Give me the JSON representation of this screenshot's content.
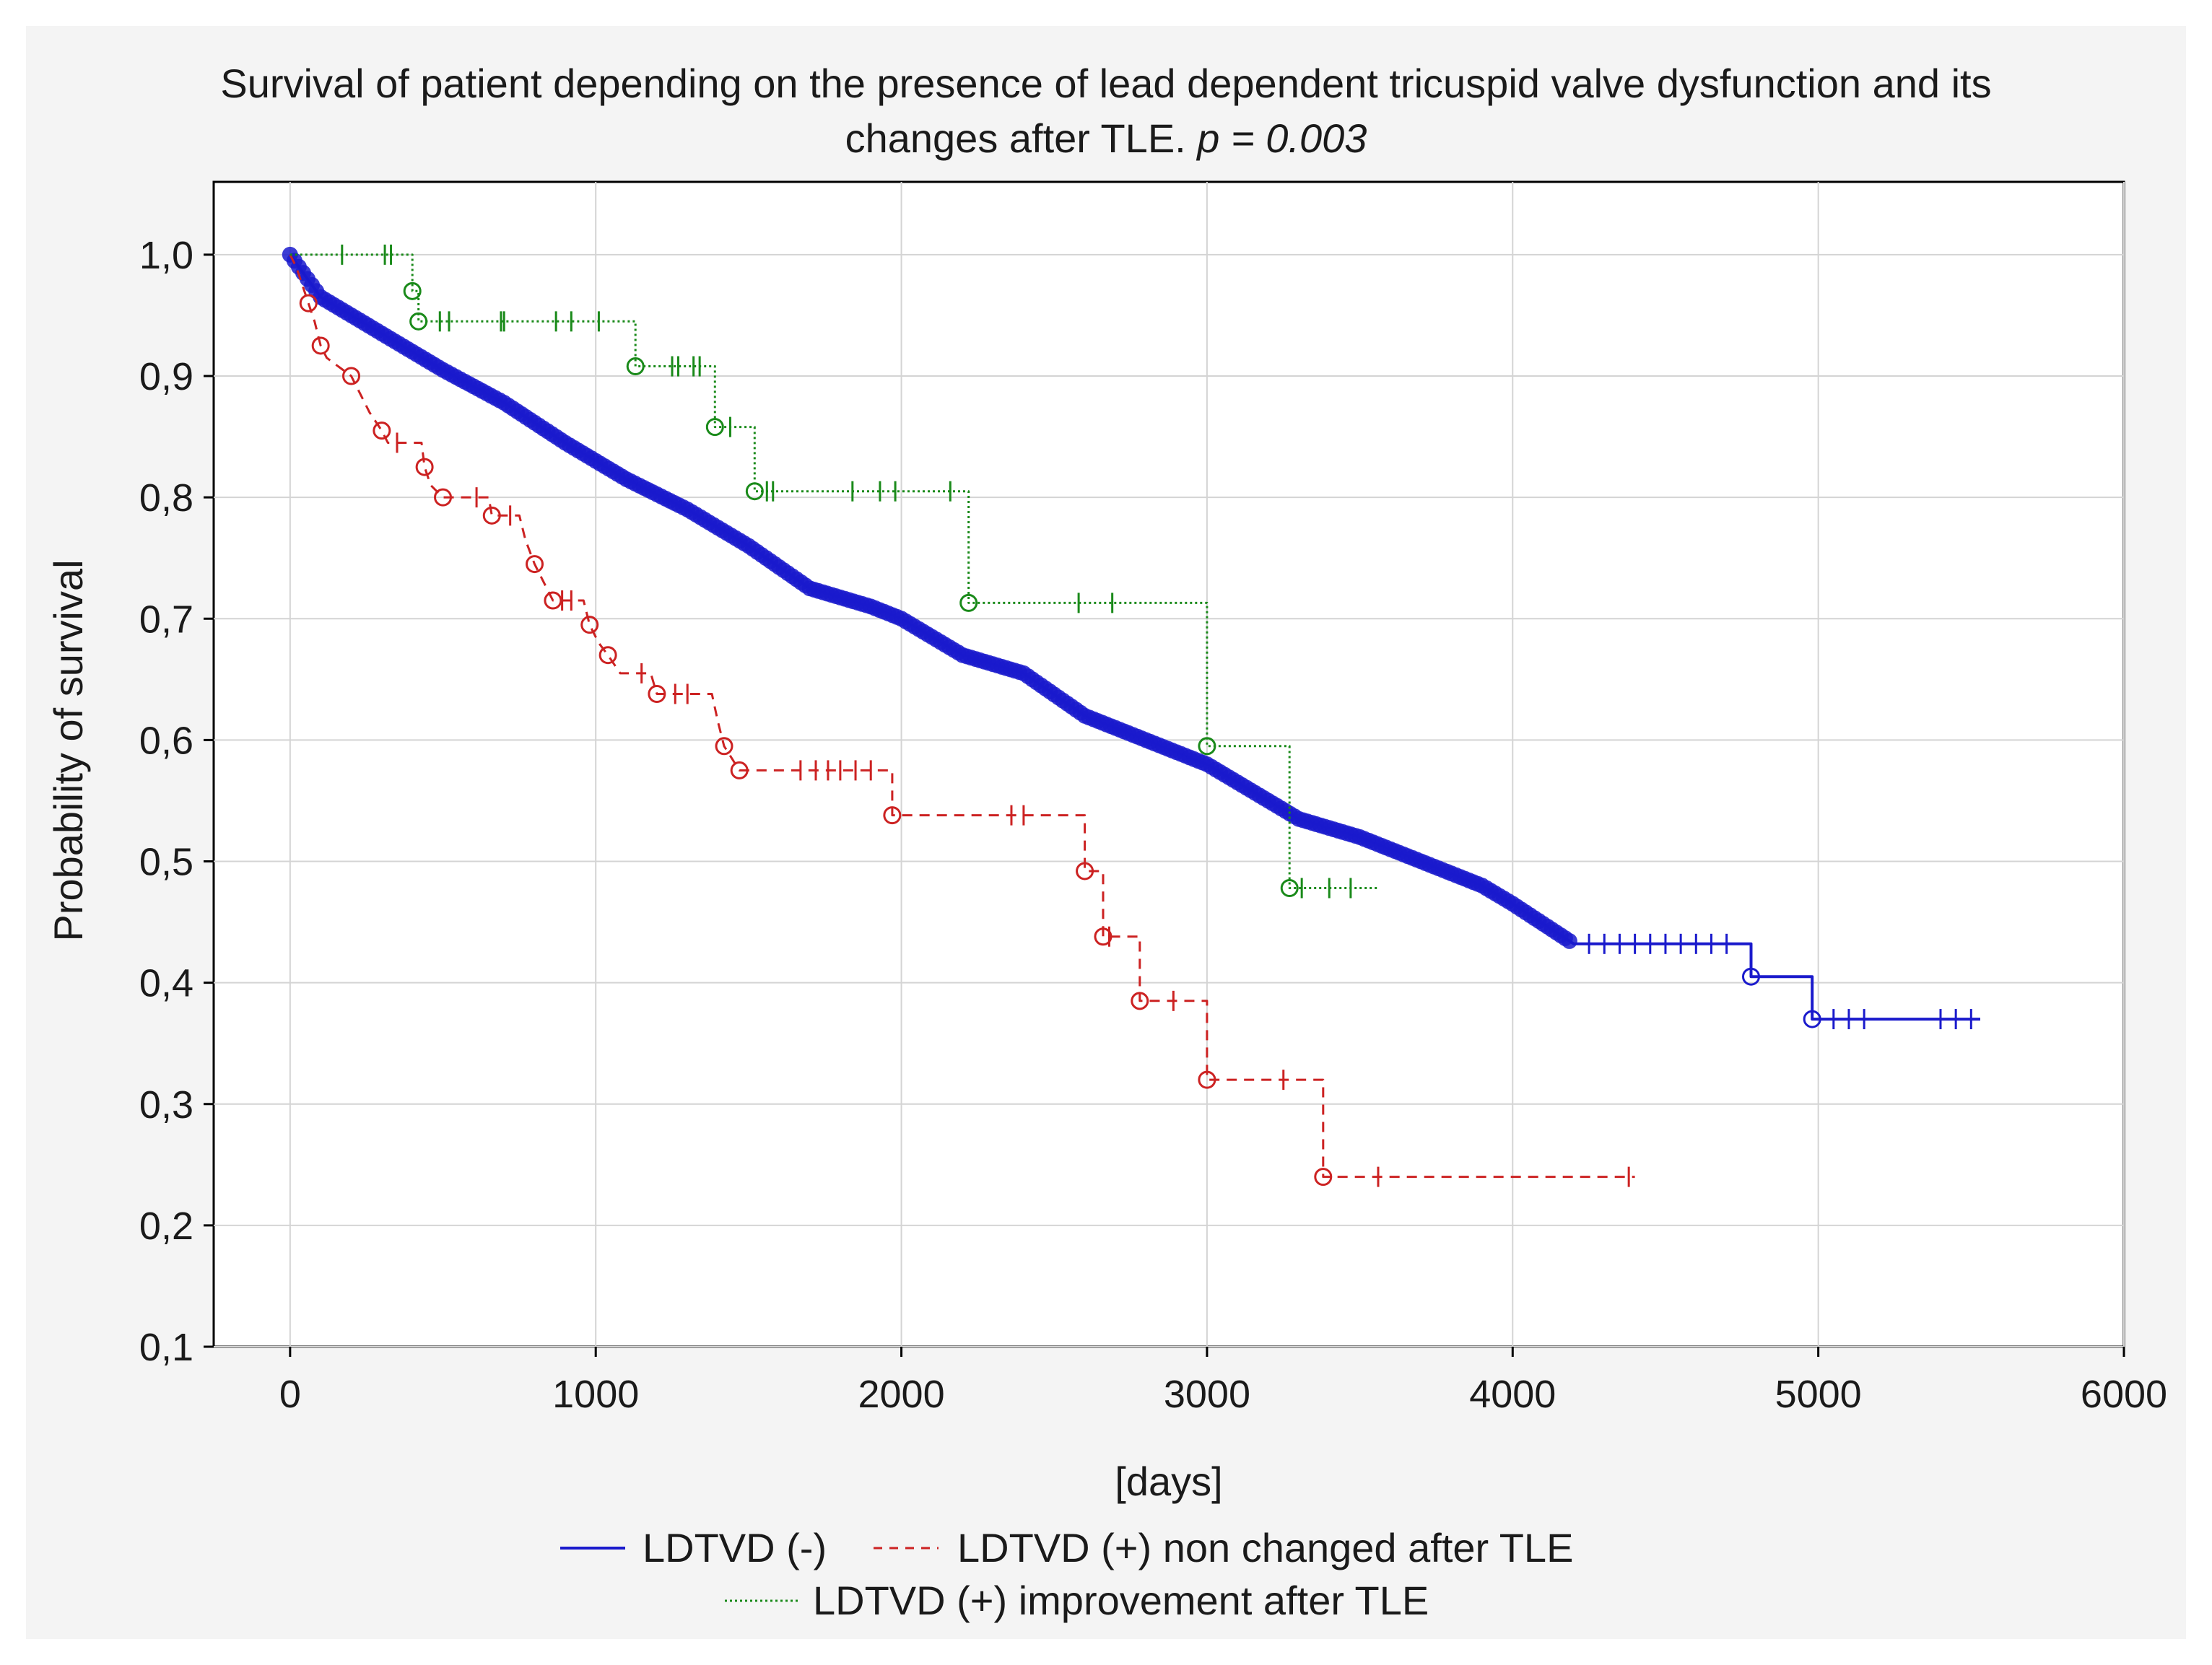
{
  "chart_data": {
    "type": "line",
    "title_line1": "Survival of patient depending on the presence of lead dependent tricuspid valve dysfunction and its",
    "title_line2": "changes after TLE. ",
    "title_p": "p = 0.003",
    "xlabel": "[days]",
    "ylabel": "Probability of survival",
    "xlim": [
      -250,
      6000
    ],
    "ylim": [
      0.1,
      1.06
    ],
    "x_ticks": [
      0,
      1000,
      2000,
      3000,
      4000,
      5000,
      6000
    ],
    "x_tick_labels": [
      "0",
      "1000",
      "2000",
      "3000",
      "4000",
      "5000",
      "6000"
    ],
    "y_ticks": [
      0.1,
      0.2,
      0.3,
      0.4,
      0.5,
      0.6,
      0.7,
      0.8,
      0.9,
      1.0
    ],
    "y_tick_labels": [
      "0,1",
      "0,2",
      "0,3",
      "0,4",
      "0,5",
      "0,6",
      "0,7",
      "0,8",
      "0,9",
      "1,0"
    ],
    "grid": true,
    "legend_position": "bottom",
    "series": [
      {
        "name": "LDTVD (-)",
        "color": "#1a1acc",
        "style": "solid",
        "points": [
          [
            0,
            1.0
          ],
          [
            100,
            0.965
          ],
          [
            300,
            0.935
          ],
          [
            500,
            0.905
          ],
          [
            700,
            0.878
          ],
          [
            900,
            0.845
          ],
          [
            1000,
            0.83
          ],
          [
            1100,
            0.815
          ],
          [
            1300,
            0.79
          ],
          [
            1500,
            0.76
          ],
          [
            1700,
            0.725
          ],
          [
            1900,
            0.71
          ],
          [
            2000,
            0.7
          ],
          [
            2200,
            0.67
          ],
          [
            2400,
            0.655
          ],
          [
            2600,
            0.62
          ],
          [
            2800,
            0.6
          ],
          [
            3000,
            0.58
          ],
          [
            3200,
            0.55
          ],
          [
            3300,
            0.535
          ],
          [
            3500,
            0.52
          ],
          [
            3700,
            0.5
          ],
          [
            3900,
            0.48
          ],
          [
            4000,
            0.465
          ],
          [
            4200,
            0.432
          ],
          [
            4780,
            0.432
          ],
          [
            4780,
            0.405
          ],
          [
            4980,
            0.405
          ],
          [
            4980,
            0.37
          ],
          [
            5530,
            0.37
          ]
        ],
        "events": [
          [
            4780,
            0.405
          ],
          [
            4980,
            0.37
          ]
        ],
        "censored": [
          4250,
          4300,
          4350,
          4400,
          4450,
          4500,
          4550,
          4600,
          4650,
          4700,
          5050,
          5100,
          5150,
          5400,
          5450,
          5500
        ]
      },
      {
        "name": "LDTVD (+) non changed  after TLE",
        "color": "#cc2222",
        "style": "dashed",
        "points": [
          [
            0,
            1.0
          ],
          [
            20,
            0.99
          ],
          [
            40,
            0.975
          ],
          [
            60,
            0.96
          ],
          [
            80,
            0.945
          ],
          [
            100,
            0.925
          ],
          [
            120,
            0.915
          ],
          [
            200,
            0.9
          ],
          [
            230,
            0.885
          ],
          [
            260,
            0.87
          ],
          [
            300,
            0.855
          ],
          [
            320,
            0.845
          ],
          [
            430,
            0.845
          ],
          [
            440,
            0.825
          ],
          [
            460,
            0.81
          ],
          [
            500,
            0.8
          ],
          [
            650,
            0.8
          ],
          [
            660,
            0.785
          ],
          [
            750,
            0.785
          ],
          [
            770,
            0.765
          ],
          [
            800,
            0.745
          ],
          [
            830,
            0.73
          ],
          [
            860,
            0.715
          ],
          [
            960,
            0.715
          ],
          [
            980,
            0.695
          ],
          [
            1010,
            0.68
          ],
          [
            1040,
            0.67
          ],
          [
            1080,
            0.655
          ],
          [
            1180,
            0.655
          ],
          [
            1200,
            0.638
          ],
          [
            1380,
            0.638
          ],
          [
            1400,
            0.615
          ],
          [
            1420,
            0.595
          ],
          [
            1470,
            0.575
          ],
          [
            1970,
            0.575
          ],
          [
            1970,
            0.538
          ],
          [
            2600,
            0.538
          ],
          [
            2600,
            0.492
          ],
          [
            2660,
            0.492
          ],
          [
            2660,
            0.438
          ],
          [
            2780,
            0.438
          ],
          [
            2780,
            0.385
          ],
          [
            3000,
            0.385
          ],
          [
            3000,
            0.32
          ],
          [
            3380,
            0.32
          ],
          [
            3380,
            0.24
          ],
          [
            4400,
            0.24
          ]
        ],
        "events": [
          [
            60,
            0.96
          ],
          [
            100,
            0.925
          ],
          [
            200,
            0.9
          ],
          [
            300,
            0.855
          ],
          [
            440,
            0.825
          ],
          [
            500,
            0.8
          ],
          [
            660,
            0.785
          ],
          [
            800,
            0.745
          ],
          [
            860,
            0.715
          ],
          [
            980,
            0.695
          ],
          [
            1040,
            0.67
          ],
          [
            1200,
            0.638
          ],
          [
            1420,
            0.595
          ],
          [
            1470,
            0.575
          ],
          [
            1970,
            0.538
          ],
          [
            2600,
            0.492
          ],
          [
            2660,
            0.438
          ],
          [
            2780,
            0.385
          ],
          [
            3000,
            0.32
          ],
          [
            3380,
            0.24
          ]
        ],
        "censored": [
          350,
          610,
          720,
          890,
          920,
          1150,
          1260,
          1300,
          1670,
          1720,
          1760,
          1800,
          1850,
          1900,
          2360,
          2400,
          2680,
          2890,
          3250,
          3560,
          4380
        ]
      },
      {
        "name": "LDTVD (+) improvement after TLE",
        "color": "#1a8a1a",
        "style": "dotted",
        "points": [
          [
            0,
            1.0
          ],
          [
            400,
            1.0
          ],
          [
            400,
            0.97
          ],
          [
            420,
            0.97
          ],
          [
            420,
            0.945
          ],
          [
            1130,
            0.945
          ],
          [
            1130,
            0.908
          ],
          [
            1390,
            0.908
          ],
          [
            1390,
            0.858
          ],
          [
            1520,
            0.858
          ],
          [
            1520,
            0.805
          ],
          [
            2220,
            0.805
          ],
          [
            2220,
            0.713
          ],
          [
            3000,
            0.713
          ],
          [
            3000,
            0.595
          ],
          [
            3270,
            0.595
          ],
          [
            3270,
            0.478
          ],
          [
            3560,
            0.478
          ]
        ],
        "events": [
          [
            400,
            0.97
          ],
          [
            420,
            0.945
          ],
          [
            1130,
            0.908
          ],
          [
            1390,
            0.858
          ],
          [
            1520,
            0.805
          ],
          [
            2220,
            0.713
          ],
          [
            3000,
            0.595
          ],
          [
            3270,
            0.478
          ]
        ],
        "censored": [
          170,
          310,
          330,
          490,
          520,
          690,
          700,
          870,
          920,
          1010,
          1250,
          1270,
          1320,
          1340,
          1440,
          1560,
          1580,
          1840,
          1930,
          1980,
          2160,
          2580,
          2690,
          3310,
          3400,
          3470
        ]
      }
    ]
  }
}
